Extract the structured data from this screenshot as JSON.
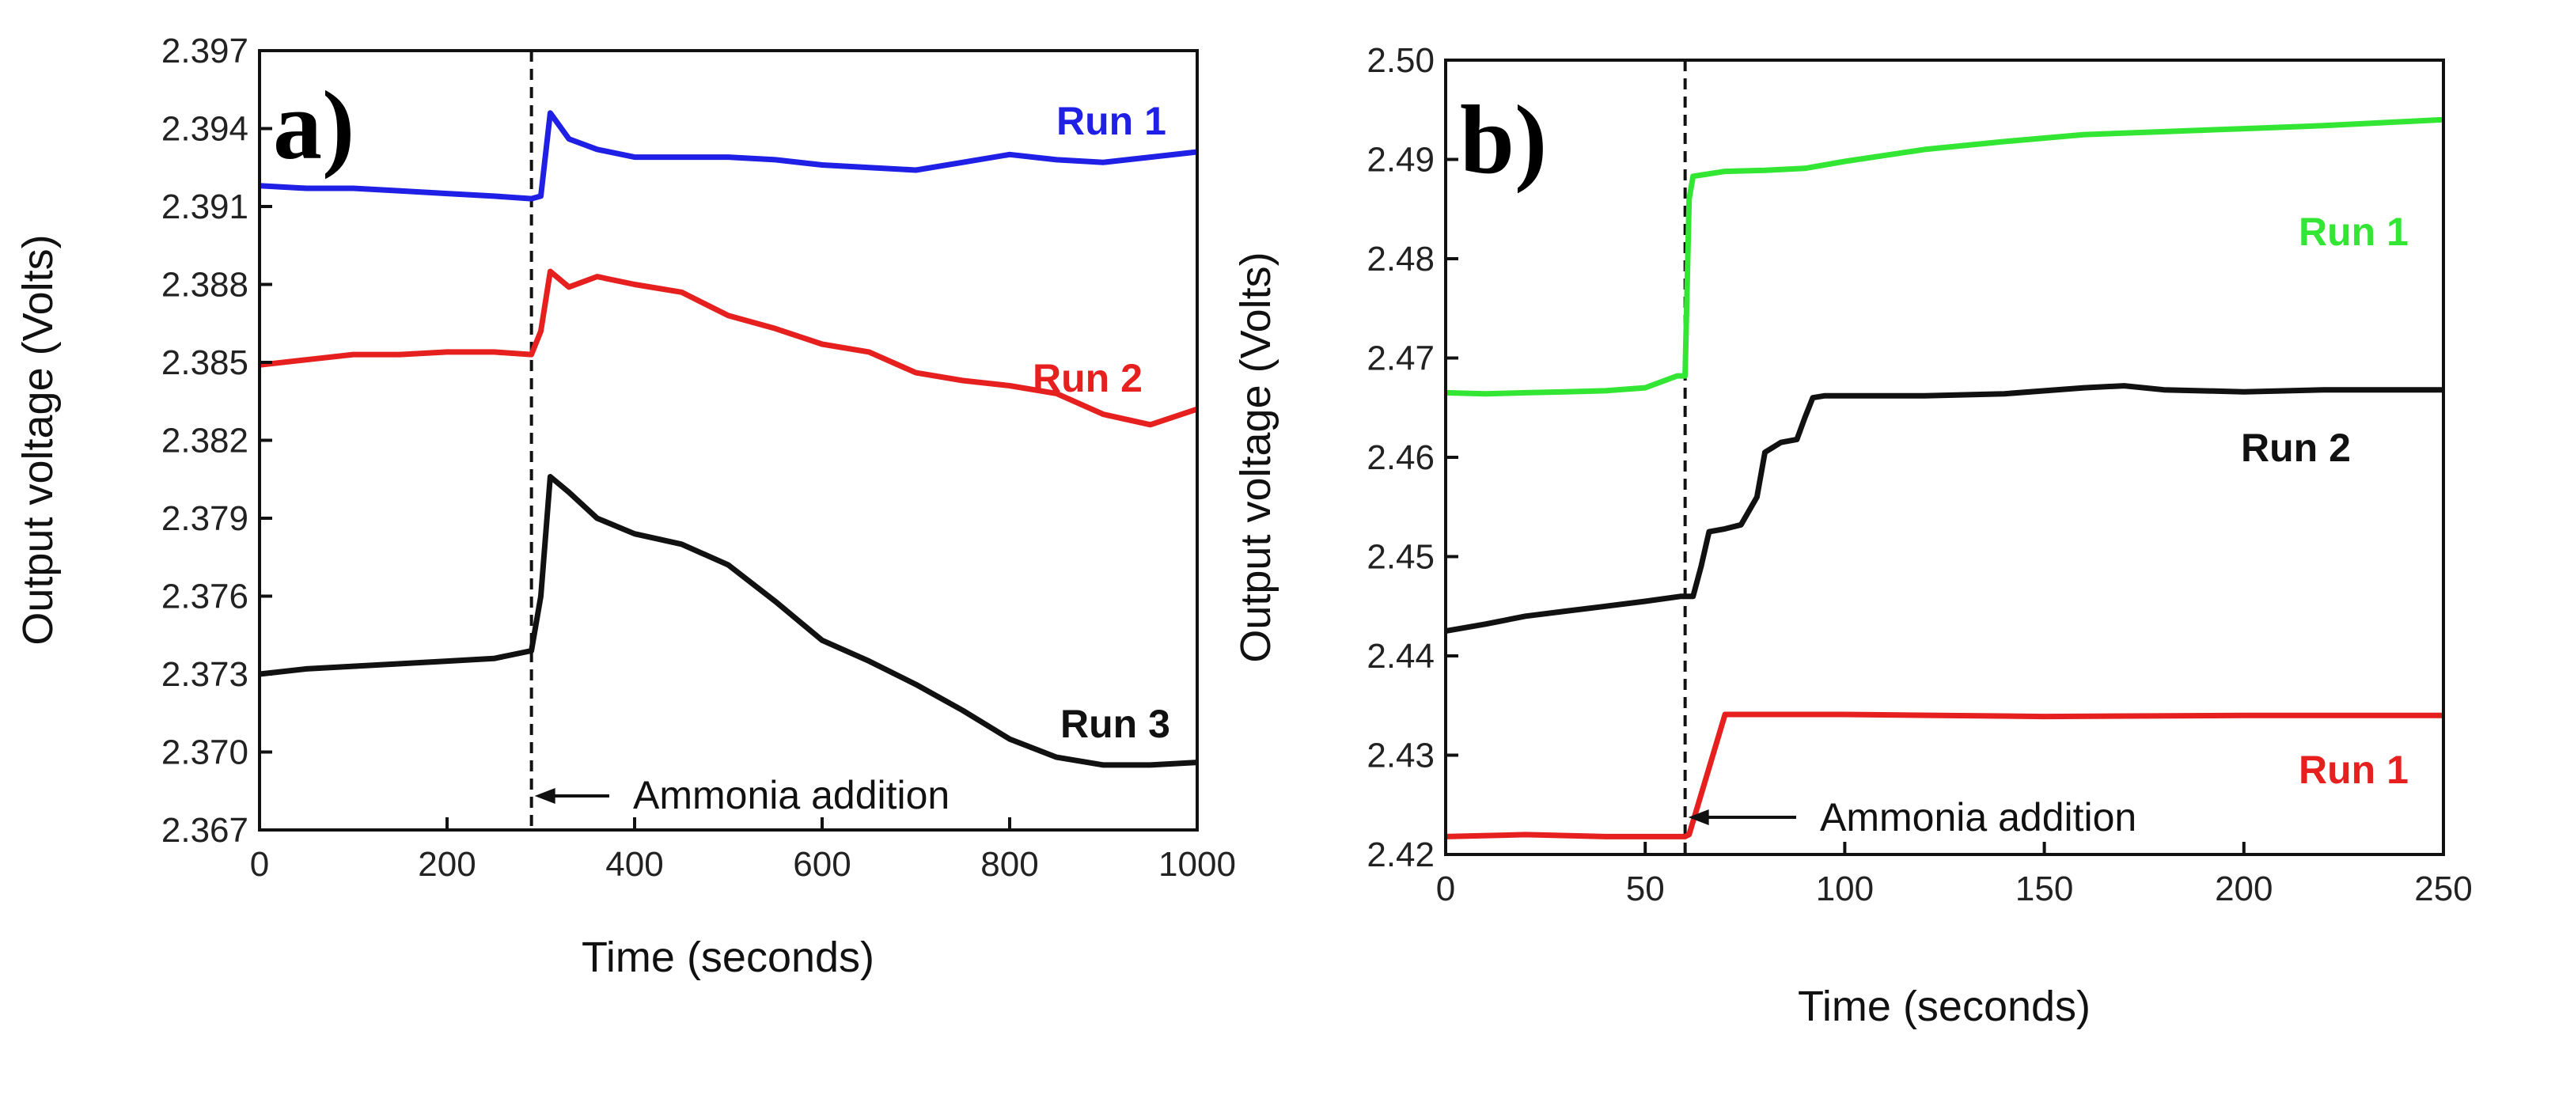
{
  "chart_data": [
    {
      "type": "line",
      "panel_label": "a)",
      "xlabel": "Time (seconds)",
      "ylabel": "Output voltage (Volts)",
      "xlim": [
        0,
        1000
      ],
      "ylim": [
        2.367,
        2.397
      ],
      "x_ticks": [
        0,
        200,
        400,
        600,
        800,
        1000
      ],
      "x_tick_labels": [
        "0",
        "200",
        "400",
        "600",
        "800",
        "1000"
      ],
      "y_ticks": [
        2.367,
        2.37,
        2.373,
        2.376,
        2.379,
        2.382,
        2.385,
        2.388,
        2.391,
        2.394,
        2.397
      ],
      "y_tick_labels": [
        "2.367",
        "2.370",
        "2.373",
        "2.376",
        "2.379",
        "2.382",
        "2.385",
        "2.388",
        "2.391",
        "2.394",
        "2.397"
      ],
      "grid": false,
      "event": {
        "x": 290,
        "label": "Ammonia addition"
      },
      "series": [
        {
          "name": "Run 1",
          "color": "#1f1fe6",
          "x": [
            0,
            50,
            100,
            150,
            200,
            250,
            290,
            300,
            310,
            330,
            360,
            400,
            450,
            500,
            550,
            600,
            650,
            700,
            750,
            800,
            850,
            900,
            950,
            1000
          ],
          "values": [
            2.3918,
            2.3917,
            2.3917,
            2.3916,
            2.3915,
            2.3914,
            2.3913,
            2.3914,
            2.3946,
            2.3936,
            2.3932,
            2.3929,
            2.3929,
            2.3929,
            2.3928,
            2.3926,
            2.3925,
            2.3924,
            2.3927,
            2.393,
            2.3928,
            2.3927,
            2.3929,
            2.3931
          ]
        },
        {
          "name": "Run 2",
          "color": "#e61f1f",
          "x": [
            0,
            50,
            100,
            150,
            200,
            250,
            290,
            300,
            310,
            330,
            360,
            400,
            450,
            500,
            550,
            600,
            650,
            700,
            750,
            800,
            850,
            900,
            950,
            1000
          ],
          "values": [
            2.3849,
            2.3851,
            2.3853,
            2.3853,
            2.3854,
            2.3854,
            2.3853,
            2.3862,
            2.3885,
            2.3879,
            2.3883,
            2.388,
            2.3877,
            2.3868,
            2.3863,
            2.3857,
            2.3854,
            2.3846,
            2.3843,
            2.3841,
            2.3838,
            2.383,
            2.3826,
            2.3832
          ]
        },
        {
          "name": "Run 3",
          "color": "#111111",
          "x": [
            0,
            50,
            100,
            150,
            200,
            250,
            290,
            300,
            310,
            330,
            360,
            400,
            450,
            500,
            550,
            600,
            650,
            700,
            750,
            800,
            850,
            900,
            950,
            1000
          ],
          "values": [
            2.373,
            2.3732,
            2.3733,
            2.3734,
            2.3735,
            2.3736,
            2.3739,
            2.376,
            2.3806,
            2.38,
            2.379,
            2.3784,
            2.378,
            2.3772,
            2.3758,
            2.3743,
            2.3735,
            2.3726,
            2.3716,
            2.3705,
            2.3698,
            2.3695,
            2.3695,
            2.3696
          ]
        }
      ]
    },
    {
      "type": "line",
      "panel_label": "b)",
      "xlabel": "Time (seconds)",
      "ylabel": "Output voltage (Volts)",
      "xlim": [
        0,
        250
      ],
      "ylim": [
        2.42,
        2.5
      ],
      "x_ticks": [
        0,
        50,
        100,
        150,
        200,
        250
      ],
      "x_tick_labels": [
        "0",
        "50",
        "100",
        "150",
        "200",
        "250"
      ],
      "y_ticks": [
        2.42,
        2.43,
        2.44,
        2.45,
        2.46,
        2.47,
        2.48,
        2.49,
        2.5
      ],
      "y_tick_labels": [
        "2.42",
        "2.43",
        "2.44",
        "2.45",
        "2.46",
        "2.47",
        "2.48",
        "2.49",
        "2.50"
      ],
      "grid": false,
      "event": {
        "x": 60,
        "label": "Ammonia addition"
      },
      "series": [
        {
          "name": "Run 1",
          "color": "#33e633",
          "x": [
            0,
            10,
            20,
            30,
            40,
            50,
            58,
            60,
            61,
            62,
            70,
            80,
            90,
            100,
            120,
            140,
            160,
            180,
            200,
            220,
            240,
            250
          ],
          "values": [
            2.4665,
            2.4664,
            2.4665,
            2.4666,
            2.4667,
            2.467,
            2.4682,
            2.4682,
            2.486,
            2.4883,
            2.4888,
            2.4889,
            2.4891,
            2.4898,
            2.491,
            2.4918,
            2.4925,
            2.4928,
            2.4931,
            2.4934,
            2.4938,
            2.494
          ]
        },
        {
          "name": "Run 2",
          "color": "#111111",
          "x": [
            0,
            10,
            20,
            30,
            40,
            50,
            59,
            62,
            64,
            66,
            70,
            74,
            78,
            80,
            84,
            88,
            90,
            92,
            95,
            100,
            120,
            140,
            160,
            170,
            180,
            200,
            220,
            240,
            250
          ],
          "values": [
            2.4425,
            2.4432,
            2.444,
            2.4445,
            2.445,
            2.4455,
            2.446,
            2.446,
            2.449,
            2.4525,
            2.4528,
            2.4532,
            2.456,
            2.4605,
            2.4615,
            2.4618,
            2.464,
            2.466,
            2.4662,
            2.4662,
            2.4662,
            2.4664,
            2.467,
            2.4672,
            2.4668,
            2.4666,
            2.4668,
            2.4668,
            2.4668
          ]
        },
        {
          "name": "Run 1",
          "color": "#e61f1f",
          "x": [
            0,
            20,
            40,
            60,
            61,
            70,
            80,
            100,
            150,
            200,
            250
          ],
          "values": [
            2.4218,
            2.422,
            2.4218,
            2.4218,
            2.422,
            2.4341,
            2.4341,
            2.4341,
            2.4339,
            2.434,
            2.434
          ]
        }
      ]
    }
  ]
}
